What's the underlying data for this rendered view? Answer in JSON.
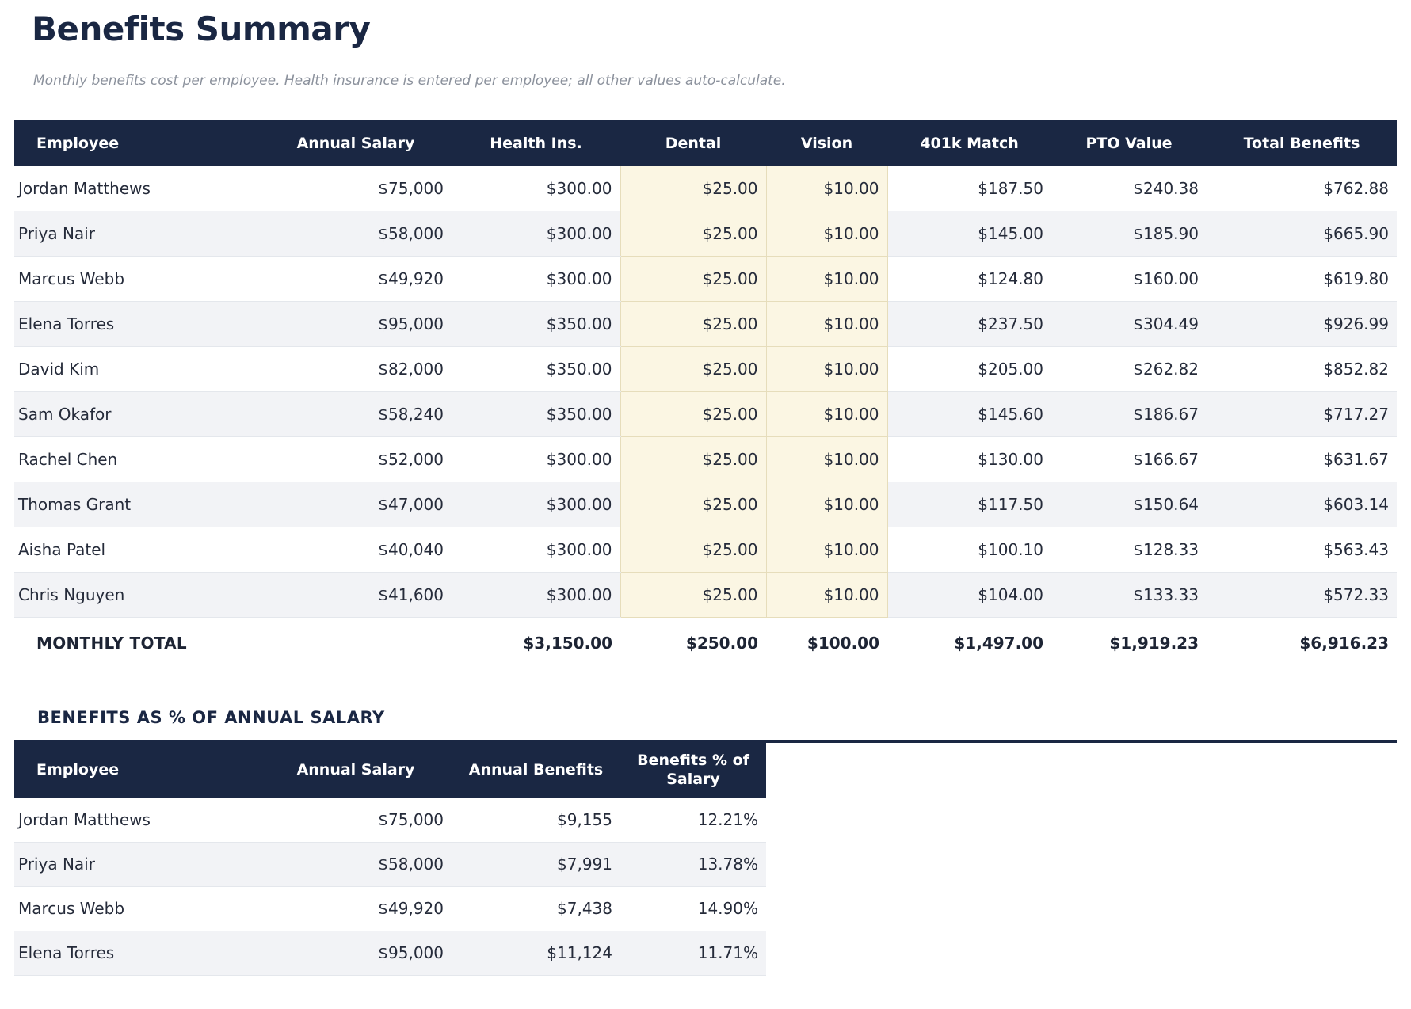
{
  "page": {
    "title": "Benefits Summary",
    "subtitle": "Monthly benefits cost per employee. Health insurance is entered per employee; all other values auto-calculate."
  },
  "colors": {
    "header_bar": "#1a2743",
    "heading_text": "#1a2743",
    "row_stripe": "#f2f3f6",
    "editable_cell_bg": "#fbf6e3",
    "editable_cell_border": "#e6ddbb"
  },
  "benefits_table": {
    "columns": [
      "Employee",
      "Annual Salary",
      "Health Ins.",
      "Dental",
      "Vision",
      "401k Match",
      "PTO Value",
      "Total Benefits"
    ],
    "editable_columns": [
      "Dental",
      "Vision"
    ],
    "rows": [
      [
        "Jordan Matthews",
        "$75,000",
        "$300.00",
        "$25.00",
        "$10.00",
        "$187.50",
        "$240.38",
        "$762.88"
      ],
      [
        "Priya Nair",
        "$58,000",
        "$300.00",
        "$25.00",
        "$10.00",
        "$145.00",
        "$185.90",
        "$665.90"
      ],
      [
        "Marcus Webb",
        "$49,920",
        "$300.00",
        "$25.00",
        "$10.00",
        "$124.80",
        "$160.00",
        "$619.80"
      ],
      [
        "Elena Torres",
        "$95,000",
        "$350.00",
        "$25.00",
        "$10.00",
        "$237.50",
        "$304.49",
        "$926.99"
      ],
      [
        "David Kim",
        "$82,000",
        "$350.00",
        "$25.00",
        "$10.00",
        "$205.00",
        "$262.82",
        "$852.82"
      ],
      [
        "Sam Okafor",
        "$58,240",
        "$350.00",
        "$25.00",
        "$10.00",
        "$145.60",
        "$186.67",
        "$717.27"
      ],
      [
        "Rachel Chen",
        "$52,000",
        "$300.00",
        "$25.00",
        "$10.00",
        "$130.00",
        "$166.67",
        "$631.67"
      ],
      [
        "Thomas Grant",
        "$47,000",
        "$300.00",
        "$25.00",
        "$10.00",
        "$117.50",
        "$150.64",
        "$603.14"
      ],
      [
        "Aisha Patel",
        "$40,040",
        "$300.00",
        "$25.00",
        "$10.00",
        "$100.10",
        "$128.33",
        "$563.43"
      ],
      [
        "Chris Nguyen",
        "$41,600",
        "$300.00",
        "$25.00",
        "$10.00",
        "$104.00",
        "$133.33",
        "$572.33"
      ]
    ],
    "total_row": {
      "label": "MONTHLY TOTAL",
      "values": [
        "",
        "$3,150.00",
        "$250.00",
        "$100.00",
        "$1,497.00",
        "$1,919.23",
        "$6,916.23"
      ]
    }
  },
  "percent_section": {
    "heading": "BENEFITS AS % OF ANNUAL SALARY",
    "table": {
      "columns": [
        "Employee",
        "Annual Salary",
        "Annual Benefits",
        "Benefits % of Salary"
      ],
      "rows": [
        [
          "Jordan Matthews",
          "$75,000",
          "$9,155",
          "12.21%"
        ],
        [
          "Priya Nair",
          "$58,000",
          "$7,991",
          "13.78%"
        ],
        [
          "Marcus Webb",
          "$49,920",
          "$7,438",
          "14.90%"
        ],
        [
          "Elena Torres",
          "$95,000",
          "$11,124",
          "11.71%"
        ]
      ]
    }
  }
}
